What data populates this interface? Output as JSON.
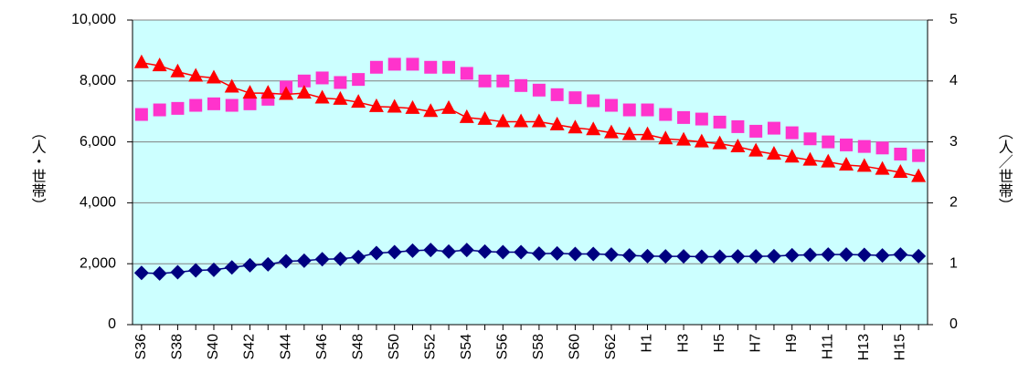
{
  "chart_data": {
    "type": "line",
    "ylabel": "（人・世帯）",
    "y2label": "（人／世帯）",
    "categories": [
      "S36",
      null,
      "S38",
      null,
      "S40",
      null,
      "S42",
      null,
      "S44",
      null,
      "S46",
      null,
      "S48",
      null,
      "S50",
      null,
      "S52",
      null,
      "S54",
      null,
      "S56",
      null,
      "S58",
      null,
      "S60",
      null,
      "S62",
      null,
      "H1",
      null,
      "H3",
      null,
      "H5",
      null,
      "H7",
      null,
      "H9",
      null,
      "H11",
      null,
      "H13",
      null,
      "H15",
      null
    ],
    "series": [
      {
        "color": "#000080",
        "marker": "diamond",
        "line": true,
        "axis": "y",
        "values": [
          1700,
          1680,
          1720,
          1780,
          1800,
          1880,
          1950,
          1980,
          2080,
          2100,
          2150,
          2160,
          2220,
          2350,
          2380,
          2430,
          2450,
          2400,
          2450,
          2400,
          2380,
          2380,
          2330,
          2340,
          2320,
          2320,
          2300,
          2270,
          2250,
          2240,
          2240,
          2230,
          2230,
          2240,
          2240,
          2250,
          2280,
          2290,
          2300,
          2300,
          2290,
          2270,
          2300,
          2250
        ]
      },
      {
        "color": "#ff33cc",
        "marker": "square",
        "line": false,
        "axis": "y",
        "values": [
          6900,
          7050,
          7100,
          7200,
          7250,
          7200,
          7250,
          7400,
          7800,
          8000,
          8100,
          7950,
          8050,
          8450,
          8550,
          8550,
          8450,
          8450,
          8250,
          8000,
          8000,
          7850,
          7700,
          7550,
          7450,
          7350,
          7200,
          7050,
          7050,
          6900,
          6800,
          6750,
          6650,
          6500,
          6350,
          6450,
          6300,
          6100,
          6000,
          5900,
          5850,
          5800,
          5600,
          5550
        ]
      },
      {
        "color": "#ff0000",
        "marker": "triangle",
        "line": true,
        "axis": "y2",
        "values": [
          4.3,
          4.25,
          4.15,
          4.08,
          4.05,
          3.9,
          3.8,
          3.8,
          3.78,
          3.8,
          3.72,
          3.7,
          3.65,
          3.58,
          3.57,
          3.55,
          3.5,
          3.55,
          3.4,
          3.37,
          3.33,
          3.33,
          3.33,
          3.28,
          3.23,
          3.2,
          3.15,
          3.12,
          3.12,
          3.05,
          3.03,
          3.0,
          2.97,
          2.92,
          2.85,
          2.8,
          2.75,
          2.7,
          2.67,
          2.62,
          2.6,
          2.55,
          2.5,
          2.43
        ]
      }
    ],
    "ylim": [
      0,
      10000
    ],
    "yticks": [
      0,
      {
        "value": 2000,
        "label": "2,000"
      },
      {
        "value": 4000,
        "label": "4,000"
      },
      {
        "value": 6000,
        "label": "6,000"
      },
      {
        "value": 8000,
        "label": "8,000"
      },
      {
        "value": 10000,
        "label": "10,000"
      }
    ],
    "y2lim": [
      0,
      5
    ],
    "y2ticks": [
      0,
      1,
      2,
      3,
      4,
      5
    ],
    "grid": true,
    "background": "#ccffff"
  }
}
